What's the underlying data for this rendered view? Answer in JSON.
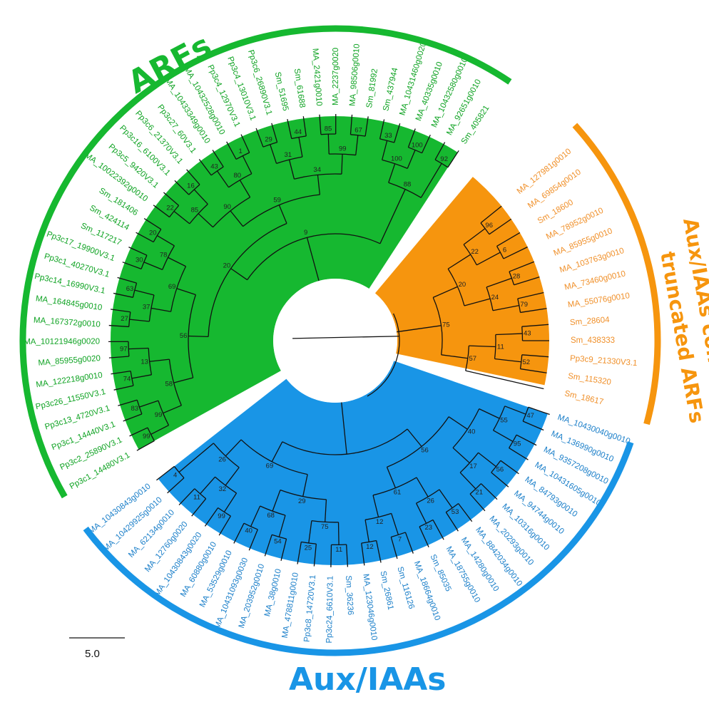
{
  "colors": {
    "arf": "#16b830",
    "arf_text": "#0fa323",
    "aux": "#1995e6",
    "aux_text": "#1b7fc9",
    "trunc": "#f6950e",
    "trunc_text": "#f0902a",
    "branch": "#111111"
  },
  "clade_labels": {
    "arf": "ARFs",
    "aux": "Aux/IAAs",
    "trunc_line1": "Aux/IAAs come from",
    "trunc_line2": "truncated ARFs"
  },
  "scale_bar": {
    "label": "5.0"
  },
  "arf_leaves": [
    "Pp3c1_14480V3.1",
    "Pp3c2_25890V3.1",
    "Pp3c1_14440V3.1",
    "Pp3c13_4720V3.1",
    "Pp3c26_11550V3.1",
    "MA_122218g0010",
    "MA_85955g0020",
    "MA_10121946g0020",
    "MA_167372g0010",
    "MA_164845g0010",
    "Pp3c14_16990V3.1",
    "Pp3c1_40270V3.1",
    "Pp3c17_19900V3.1",
    "Sm_117217",
    "Sm_424114",
    "Sm_181406",
    "MA_10022392g0010",
    "Pp3c5_9420V3.1",
    "Pp3c16_6100V3.1",
    "Pp3c6_21370V3.1",
    "Pp3c27_60V3.1",
    "MA_10433349g0010",
    "MA_10432528g0010",
    "Pp3c4_12970V3.1",
    "Pp3c4_13010V3.1",
    "Pp3c6_26890V3.1",
    "Sm_51695",
    "Sm_61688",
    "MA_2421g0010",
    "MA_2237g0020",
    "MA_98506g0010",
    "Sm_81992",
    "Sm_437944",
    "MA_10431460g0020",
    "MA_40335g0010",
    "MA_10432580g0010",
    "MA_92651g0010",
    "Sm_405821"
  ],
  "trunc_leaves": [
    "MA_127981g0010",
    "MA_69854g0010",
    "Sm_18600",
    "MA_78952g0010",
    "MA_85955g0010",
    "MA_103763g0010",
    "MA_73460g0010",
    "MA_55076g0010",
    "Sm_28604",
    "Sm_438333",
    "Pp3c9_21330V3.1",
    "Sm_115320",
    "Sm_18617"
  ],
  "aux_leaves": [
    "MA_10430040g0010",
    "MA_136990g0010",
    "MA_9357208g0010",
    "MA_10431605g0010",
    "MA_84793g0010",
    "MA_94744g0010",
    "MA_10316g0010",
    "MA_20293g0010",
    "MA_8842034g0010",
    "MA_14280g0010",
    "MA_18755g0010",
    "Sm_85035",
    "MA_18664g0010",
    "Sm_116126",
    "Sm_26861",
    "MA_123046g0010",
    "Sm_36236",
    "Pp3c24_6610V3.1",
    "Pp3c8_14720V3.1",
    "MA_478811g0010",
    "MA_38g0010",
    "MA_203952g0010",
    "MA_10431093g0030",
    "MA_53529g0010",
    "MA_60880g0010",
    "MA_10430843g0020",
    "MA_12760g0020",
    "MA_62134g0010",
    "MA_10429925g0010",
    "MA_10430843g0010"
  ],
  "bootstrap_values": [
    "99",
    "83",
    "74",
    "97",
    "27",
    "63",
    "30",
    "20",
    "22",
    "16",
    "43",
    "1",
    "29",
    "44",
    "85",
    "67",
    "33",
    "100",
    "92",
    "99",
    "13",
    "37",
    "78",
    "85",
    "80",
    "31",
    "99",
    "100",
    "58",
    "69",
    "90",
    "34",
    "88",
    "56",
    "59",
    "20",
    "9",
    "96",
    "6",
    "28",
    "79",
    "43",
    "52",
    "22",
    "24",
    "11",
    "20",
    "57",
    "75",
    "47",
    "95",
    "56",
    "21",
    "53",
    "23",
    "7",
    "12",
    "11",
    "25",
    "54",
    "40",
    "99",
    "11",
    "4",
    "55",
    "17",
    "26",
    "12",
    "75",
    "68",
    "32",
    "40",
    "61",
    "29",
    "26",
    "56",
    "69"
  ]
}
